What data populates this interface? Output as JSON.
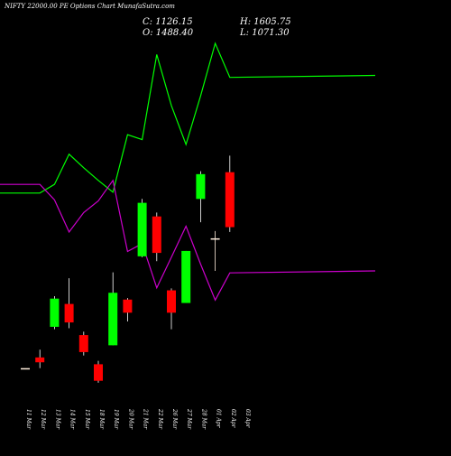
{
  "chart_data": {
    "type": "candlestick",
    "title": "NIFTY 22000.00 PE Options Chart MunafaSutra.com",
    "ohlc_readout": {
      "C": "1126.15",
      "O": "1488.40",
      "H": "1605.75",
      "L": "1071.30"
    },
    "categories": [
      "11 Mar",
      "12 Mar",
      "13 Mar",
      "14 Mar",
      "15 Mar",
      "18 Mar",
      "19 Mar",
      "20 Mar",
      "21 Mar",
      "22 Mar",
      "26 Mar",
      "27 Mar",
      "28 Mar",
      "01 Apr",
      "02 Apr",
      "03 Apr"
    ],
    "candles": [
      {
        "date": "11 Mar",
        "open": 440,
        "close": 440,
        "high": 440,
        "low": 440
      },
      {
        "date": "12 Mar",
        "open": 462,
        "close": 452,
        "high": 478,
        "low": 440
      },
      {
        "date": "13 Mar",
        "open": 525,
        "close": 583,
        "high": 588,
        "low": 520
      },
      {
        "date": "14 Mar",
        "open": 572,
        "close": 534,
        "high": 625,
        "low": 522
      },
      {
        "date": "15 Mar",
        "open": 508,
        "close": 473,
        "high": 515,
        "low": 466
      },
      {
        "date": "18 Mar",
        "open": 448,
        "close": 414,
        "high": 455,
        "low": 410
      },
      {
        "date": "19 Mar",
        "open": 487,
        "close": 595,
        "high": 637,
        "low": 487
      },
      {
        "date": "20 Mar",
        "open": 581,
        "close": 554,
        "high": 584,
        "low": 536
      },
      {
        "date": "21 Mar",
        "open": 670,
        "close": 780,
        "high": 788,
        "low": 668
      },
      {
        "date": "22 Mar",
        "open": 752,
        "close": 677,
        "high": 760,
        "low": 660
      },
      {
        "date": "26 Mar",
        "open": 600,
        "close": 554,
        "high": 604,
        "low": 520
      },
      {
        "date": "27 Mar",
        "open": 574,
        "close": 681,
        "high": 681,
        "low": 574
      },
      {
        "date": "28 Mar",
        "open": 788,
        "close": 839,
        "high": 845,
        "low": 740
      },
      {
        "date": "01 Apr",
        "open": 707,
        "close": 707,
        "high": 722,
        "low": 640
      },
      {
        "date": "02 Apr",
        "open": 843,
        "close": 730,
        "high": 877,
        "low": 720
      },
      {
        "date": "03 Apr",
        "open": null,
        "close": null,
        "high": null,
        "low": null
      }
    ],
    "series": [
      {
        "color": "#00ff00",
        "values": [
          800,
          800,
          818,
          880,
          852,
          826,
          802,
          920,
          910,
          1085,
          980,
          900,
          1000,
          1108,
          1038,
          1042
        ]
      },
      {
        "color": "#cc00cc",
        "values": [
          818,
          818,
          786,
          720,
          760,
          784,
          826,
          680,
          696,
          605,
          668,
          732,
          654,
          580,
          636,
          640
        ]
      }
    ],
    "price_range": [
      380,
      1160
    ],
    "candle_colors": {
      "up": "#00ff00",
      "down": "#ff0000",
      "doji": "#ffeedd"
    }
  }
}
